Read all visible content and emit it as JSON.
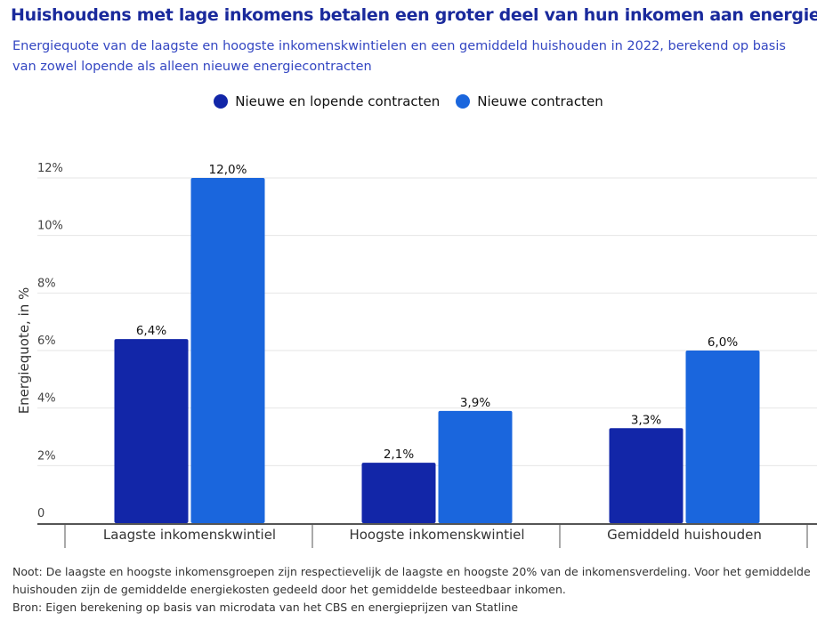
{
  "title": "Huishoudens met lage inkomens betalen een groter deel van hun inkomen aan energie",
  "subtitle": "Energiequote van de laagste en hoogste inkomenskwintielen en een gemiddeld huishouden in 2022, berekend op basis van zowel lopende als alleen nieuwe energiecontracten",
  "notes": [
    "Noot: De laagste en hoogste inkomensgroepen zijn respectievelijk de laagste en hoogste 20% van de inkomensverdeling. Voor het gemiddelde huishouden zijn de gemiddelde energiekosten gedeeld door het gemiddelde besteedbaar inkomen.",
    "Bron: Eigen berekening op basis van microdata van het CBS en energieprijzen van Statline"
  ],
  "chart_data": {
    "type": "bar",
    "categories": [
      "Laagste inkomenskwintiel",
      "Hoogste inkomenskwintiel",
      "Gemiddeld huishouden"
    ],
    "series": [
      {
        "name": "Nieuwe en lopende contracten",
        "values": [
          6.4,
          2.1,
          3.3
        ],
        "labels": [
          "6,4%",
          "2,1%",
          "3,3%"
        ],
        "color": "#1226a8"
      },
      {
        "name": "Nieuwe contracten",
        "values": [
          12.0,
          3.9,
          6.0
        ],
        "labels": [
          "12,0%",
          "3,9%",
          "6,0%"
        ],
        "color": "#1a66dd"
      }
    ],
    "ylabel": "Energiequote, in %",
    "ylim": [
      0,
      12
    ],
    "yticks": [
      0,
      2,
      4,
      6,
      8,
      10,
      12
    ],
    "ytick_labels": [
      "0",
      "2%",
      "4%",
      "6%",
      "8%",
      "10%",
      "12%"
    ],
    "grid": true,
    "legend": "top-center"
  }
}
